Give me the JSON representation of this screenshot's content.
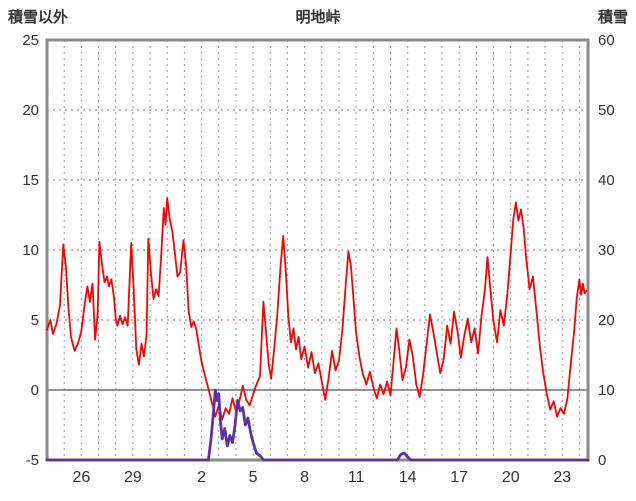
{
  "chart_data": {
    "type": "line",
    "title": "明地峠",
    "left_axis": {
      "label": "積雪以外",
      "min": -5,
      "max": 25,
      "ticks": [
        -5,
        0,
        5,
        10,
        15,
        20,
        25
      ]
    },
    "right_axis": {
      "label": "積雪",
      "min": 0,
      "max": 60,
      "ticks": [
        0,
        10,
        20,
        30,
        40,
        50,
        60
      ]
    },
    "x_axis": {
      "min": 0,
      "max": 31.5,
      "grid_step": 1,
      "ticks": [
        {
          "pos": 2,
          "label": "26"
        },
        {
          "pos": 5,
          "label": "29"
        },
        {
          "pos": 9,
          "label": "2"
        },
        {
          "pos": 12,
          "label": "5"
        },
        {
          "pos": 15,
          "label": "8"
        },
        {
          "pos": 18,
          "label": "11"
        },
        {
          "pos": 21,
          "label": "14"
        },
        {
          "pos": 24,
          "label": "17"
        },
        {
          "pos": 27,
          "label": "20"
        },
        {
          "pos": 30,
          "label": "23"
        }
      ]
    },
    "colors": {
      "background": "#ffffff",
      "frame": "#8a8a8a",
      "grid_vertical": "#9a9a9a",
      "grid_horizontal": "#cc6666",
      "zero_line": "#707070",
      "text": "#333333",
      "series_red": "#ff0000",
      "series_purple": "#5a35a0"
    },
    "series": [
      {
        "id": "other-than-snow-line",
        "name": "積雪以外",
        "axis": "left",
        "color": "#ff0000",
        "width": 1.8,
        "points": [
          [
            0,
            4.3
          ],
          [
            0.2,
            5.0
          ],
          [
            0.35,
            4.0
          ],
          [
            0.55,
            4.7
          ],
          [
            0.75,
            6.0
          ],
          [
            0.95,
            10.4
          ],
          [
            1.1,
            8.8
          ],
          [
            1.25,
            5.8
          ],
          [
            1.4,
            3.8
          ],
          [
            1.6,
            2.8
          ],
          [
            1.8,
            3.3
          ],
          [
            2.0,
            4.2
          ],
          [
            2.2,
            6.2
          ],
          [
            2.35,
            7.4
          ],
          [
            2.5,
            6.3
          ],
          [
            2.65,
            7.6
          ],
          [
            2.8,
            3.6
          ],
          [
            2.95,
            5.5
          ],
          [
            3.05,
            10.6
          ],
          [
            3.2,
            9.0
          ],
          [
            3.35,
            7.7
          ],
          [
            3.5,
            8.1
          ],
          [
            3.6,
            7.4
          ],
          [
            3.75,
            7.9
          ],
          [
            3.9,
            6.6
          ],
          [
            4.0,
            5.1
          ],
          [
            4.1,
            4.6
          ],
          [
            4.25,
            5.3
          ],
          [
            4.4,
            4.7
          ],
          [
            4.55,
            5.2
          ],
          [
            4.7,
            4.6
          ],
          [
            4.9,
            10.5
          ],
          [
            5.05,
            7.2
          ],
          [
            5.2,
            2.9
          ],
          [
            5.35,
            1.8
          ],
          [
            5.5,
            3.3
          ],
          [
            5.65,
            2.4
          ],
          [
            5.8,
            4.0
          ],
          [
            5.9,
            10.8
          ],
          [
            6.05,
            8.4
          ],
          [
            6.2,
            6.5
          ],
          [
            6.35,
            7.2
          ],
          [
            6.5,
            6.7
          ],
          [
            6.65,
            9.6
          ],
          [
            6.8,
            13.0
          ],
          [
            6.9,
            11.8
          ],
          [
            7.0,
            13.7
          ],
          [
            7.15,
            12.2
          ],
          [
            7.3,
            11.3
          ],
          [
            7.45,
            9.7
          ],
          [
            7.6,
            8.1
          ],
          [
            7.75,
            8.4
          ],
          [
            7.95,
            10.7
          ],
          [
            8.1,
            8.9
          ],
          [
            8.25,
            5.6
          ],
          [
            8.4,
            4.5
          ],
          [
            8.55,
            4.9
          ],
          [
            8.7,
            4.3
          ],
          [
            8.85,
            3.1
          ],
          [
            9.0,
            2.0
          ],
          [
            9.2,
            1.0
          ],
          [
            9.4,
            0.1
          ],
          [
            9.6,
            -0.9
          ],
          [
            9.8,
            -1.9
          ],
          [
            10.0,
            -1.1
          ],
          [
            10.2,
            -2.1
          ],
          [
            10.4,
            -1.3
          ],
          [
            10.6,
            -1.7
          ],
          [
            10.8,
            -0.6
          ],
          [
            11.0,
            -1.5
          ],
          [
            11.2,
            -0.8
          ],
          [
            11.4,
            0.3
          ],
          [
            11.6,
            -0.7
          ],
          [
            11.8,
            -1.1
          ],
          [
            12.0,
            -0.3
          ],
          [
            12.2,
            0.4
          ],
          [
            12.4,
            1.0
          ],
          [
            12.6,
            6.3
          ],
          [
            12.75,
            4.2
          ],
          [
            12.9,
            1.9
          ],
          [
            13.05,
            0.8
          ],
          [
            13.2,
            2.6
          ],
          [
            13.4,
            5.2
          ],
          [
            13.6,
            8.9
          ],
          [
            13.75,
            11.0
          ],
          [
            13.9,
            8.6
          ],
          [
            14.05,
            5.3
          ],
          [
            14.2,
            3.4
          ],
          [
            14.35,
            4.4
          ],
          [
            14.5,
            2.9
          ],
          [
            14.65,
            3.8
          ],
          [
            14.8,
            2.2
          ],
          [
            15.0,
            3.1
          ],
          [
            15.2,
            1.6
          ],
          [
            15.4,
            2.7
          ],
          [
            15.6,
            1.2
          ],
          [
            15.8,
            1.9
          ],
          [
            16.0,
            0.6
          ],
          [
            16.2,
            -0.7
          ],
          [
            16.4,
            0.9
          ],
          [
            16.6,
            2.8
          ],
          [
            16.8,
            1.4
          ],
          [
            17.0,
            2.1
          ],
          [
            17.2,
            4.3
          ],
          [
            17.4,
            7.6
          ],
          [
            17.55,
            9.9
          ],
          [
            17.7,
            8.8
          ],
          [
            17.85,
            6.4
          ],
          [
            18.0,
            4.1
          ],
          [
            18.2,
            2.3
          ],
          [
            18.4,
            1.1
          ],
          [
            18.6,
            0.4
          ],
          [
            18.8,
            1.3
          ],
          [
            19.0,
            0.2
          ],
          [
            19.2,
            -0.6
          ],
          [
            19.4,
            0.4
          ],
          [
            19.6,
            -0.3
          ],
          [
            19.8,
            0.6
          ],
          [
            20.0,
            -0.4
          ],
          [
            20.2,
            2.3
          ],
          [
            20.35,
            4.4
          ],
          [
            20.5,
            2.9
          ],
          [
            20.7,
            0.7
          ],
          [
            20.9,
            1.6
          ],
          [
            21.1,
            3.6
          ],
          [
            21.3,
            2.4
          ],
          [
            21.5,
            0.4
          ],
          [
            21.7,
            -0.5
          ],
          [
            21.9,
            1.1
          ],
          [
            22.1,
            3.3
          ],
          [
            22.3,
            5.4
          ],
          [
            22.5,
            4.1
          ],
          [
            22.7,
            2.6
          ],
          [
            22.9,
            1.2
          ],
          [
            23.1,
            2.2
          ],
          [
            23.3,
            4.6
          ],
          [
            23.5,
            3.3
          ],
          [
            23.7,
            5.6
          ],
          [
            23.9,
            4.2
          ],
          [
            24.1,
            2.3
          ],
          [
            24.3,
            3.9
          ],
          [
            24.5,
            5.1
          ],
          [
            24.7,
            3.4
          ],
          [
            24.9,
            4.4
          ],
          [
            25.1,
            2.6
          ],
          [
            25.3,
            5.3
          ],
          [
            25.5,
            7.2
          ],
          [
            25.65,
            9.5
          ],
          [
            25.8,
            7.4
          ],
          [
            26.0,
            4.9
          ],
          [
            26.2,
            3.4
          ],
          [
            26.4,
            5.7
          ],
          [
            26.6,
            4.6
          ],
          [
            26.8,
            6.8
          ],
          [
            27.0,
            9.8
          ],
          [
            27.15,
            12.2
          ],
          [
            27.3,
            13.4
          ],
          [
            27.45,
            12.1
          ],
          [
            27.6,
            12.9
          ],
          [
            27.75,
            11.6
          ],
          [
            27.9,
            9.4
          ],
          [
            28.1,
            7.2
          ],
          [
            28.3,
            8.1
          ],
          [
            28.5,
            5.6
          ],
          [
            28.7,
            3.1
          ],
          [
            28.9,
            1.2
          ],
          [
            29.1,
            -0.3
          ],
          [
            29.3,
            -1.4
          ],
          [
            29.5,
            -0.8
          ],
          [
            29.7,
            -1.9
          ],
          [
            29.9,
            -1.3
          ],
          [
            30.1,
            -1.7
          ],
          [
            30.3,
            -0.6
          ],
          [
            30.5,
            1.9
          ],
          [
            30.7,
            4.3
          ],
          [
            30.85,
            6.6
          ],
          [
            31.0,
            7.9
          ],
          [
            31.1,
            6.8
          ],
          [
            31.2,
            7.6
          ],
          [
            31.3,
            6.9
          ],
          [
            31.4,
            7.1
          ]
        ]
      },
      {
        "id": "snow-depth-line",
        "name": "積雪",
        "axis": "right",
        "color": "#5a35a0",
        "width": 2.8,
        "points": [
          [
            0,
            0
          ],
          [
            9.4,
            0
          ],
          [
            9.55,
            3
          ],
          [
            9.7,
            7
          ],
          [
            9.8,
            10
          ],
          [
            9.9,
            8.5
          ],
          [
            10.0,
            9.5
          ],
          [
            10.1,
            5.5
          ],
          [
            10.2,
            3
          ],
          [
            10.35,
            4.5
          ],
          [
            10.5,
            2
          ],
          [
            10.65,
            3.5
          ],
          [
            10.8,
            2.5
          ],
          [
            10.95,
            5
          ],
          [
            11.1,
            8.5
          ],
          [
            11.25,
            7
          ],
          [
            11.4,
            7.5
          ],
          [
            11.55,
            5
          ],
          [
            11.7,
            6
          ],
          [
            11.85,
            4
          ],
          [
            12.0,
            2.5
          ],
          [
            12.2,
            1
          ],
          [
            12.45,
            0.5
          ],
          [
            12.6,
            0
          ],
          [
            20.4,
            0
          ],
          [
            20.6,
            0.8
          ],
          [
            20.8,
            1.0
          ],
          [
            21.05,
            0.3
          ],
          [
            21.2,
            0
          ],
          [
            31.5,
            0
          ]
        ]
      }
    ]
  }
}
